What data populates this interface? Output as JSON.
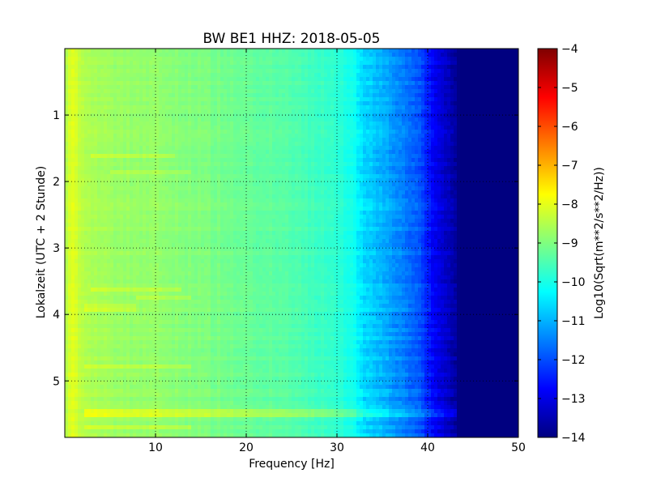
{
  "chart_data": {
    "type": "heatmap",
    "title": "BW BE1 HHZ: 2018-05-05",
    "xlabel": "Frequency [Hz]",
    "ylabel": "Lokalzeit (UTC + 2 Stunde)",
    "xlim": [
      0,
      50
    ],
    "ylim": [
      5.85,
      0
    ],
    "x_ticks": [
      10,
      20,
      30,
      40,
      50
    ],
    "y_ticks": [
      1,
      2,
      3,
      4,
      5
    ],
    "grid": true,
    "colormap": "jet",
    "colorbar": {
      "label": "Log10(Sqrt(m**2/s**2/Hz))",
      "range": [
        -14,
        -4
      ],
      "ticks": [
        -4,
        -5,
        -6,
        -7,
        -8,
        -9,
        -10,
        -11,
        -12,
        -13,
        -14
      ]
    },
    "spectrum_profile": {
      "frequency_hz": [
        0,
        0.8,
        1.5,
        3,
        5,
        8,
        10,
        15,
        20,
        25,
        30,
        32,
        33,
        35,
        37,
        39,
        40,
        41,
        42,
        43,
        43.5,
        50
      ],
      "level": [
        -8.6,
        -8.0,
        -8.3,
        -8.6,
        -8.7,
        -8.8,
        -8.8,
        -9.0,
        -9.2,
        -9.4,
        -9.8,
        -10.1,
        -10.6,
        -11.0,
        -11.4,
        -11.9,
        -12.4,
        -12.9,
        -13.3,
        -13.7,
        -14.0,
        -14.0
      ]
    },
    "highlighted_rows": [
      {
        "time": 1.6,
        "delta": 0.35,
        "fmin": 3,
        "fmax": 12
      },
      {
        "time": 1.85,
        "delta": 0.3,
        "fmin": 5,
        "fmax": 14
      },
      {
        "time": 3.65,
        "delta": 0.35,
        "fmin": 3,
        "fmax": 13
      },
      {
        "time": 3.75,
        "delta": 0.35,
        "fmin": 8,
        "fmax": 14
      },
      {
        "time": 3.9,
        "delta": 0.3,
        "fmin": 2,
        "fmax": 8
      },
      {
        "time": 4.8,
        "delta": 0.35,
        "fmin": 2,
        "fmax": 14
      },
      {
        "time": 5.48,
        "delta": 0.7,
        "fmin": 2,
        "fmax": 45
      },
      {
        "time": 5.7,
        "delta": 0.35,
        "fmin": 2,
        "fmax": 14
      }
    ]
  }
}
